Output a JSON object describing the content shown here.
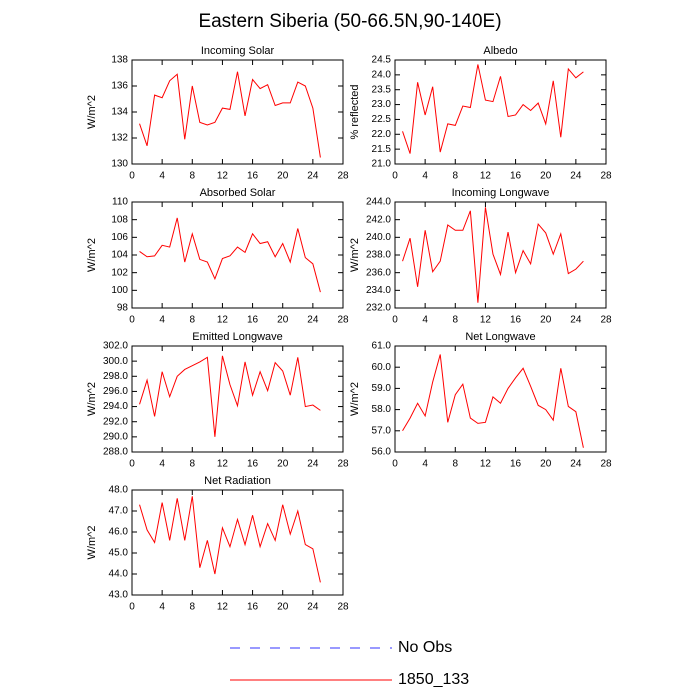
{
  "title": "Eastern Siberia (50-66.5N,90-140E)",
  "legend": [
    {
      "name": "No Obs",
      "color": "#3333ff",
      "dashed": true
    },
    {
      "name": "1850_133",
      "color": "#ff0000",
      "dashed": false
    }
  ],
  "chart_data": [
    {
      "type": "line",
      "title": "Incoming Solar",
      "y_label": "W/m^2",
      "color": "#ff0000",
      "x": [
        1,
        2,
        3,
        4,
        5,
        6,
        7,
        8,
        9,
        10,
        11,
        12,
        13,
        14,
        15,
        16,
        17,
        18,
        19,
        20,
        21,
        22,
        23,
        24,
        25
      ],
      "values": [
        133.1,
        131.4,
        135.3,
        135.1,
        136.4,
        136.9,
        131.9,
        136.0,
        133.2,
        133.0,
        133.2,
        134.3,
        134.2,
        137.1,
        133.7,
        136.5,
        135.8,
        136.1,
        134.5,
        134.7,
        134.7,
        136.3,
        136.0,
        134.3,
        130.5
      ],
      "xlim": [
        0,
        28
      ],
      "xticks": [
        0,
        4,
        8,
        12,
        16,
        20,
        24,
        28
      ],
      "ylim": [
        130,
        138
      ],
      "yticks": [
        130,
        132,
        134,
        136,
        138
      ]
    },
    {
      "type": "line",
      "title": "Albedo",
      "y_label": "% reflected",
      "color": "#ff0000",
      "x": [
        1,
        2,
        3,
        4,
        5,
        6,
        7,
        8,
        9,
        10,
        11,
        12,
        13,
        14,
        15,
        16,
        17,
        18,
        19,
        20,
        21,
        22,
        23,
        24,
        25
      ],
      "values": [
        22.1,
        21.35,
        23.75,
        22.65,
        23.6,
        21.4,
        22.35,
        22.3,
        22.95,
        22.9,
        24.35,
        23.15,
        23.1,
        23.95,
        22.6,
        22.65,
        23.0,
        22.8,
        23.05,
        22.35,
        23.8,
        21.9,
        24.2,
        23.9,
        24.1
      ],
      "xlim": [
        0,
        28
      ],
      "xticks": [
        0,
        4,
        8,
        12,
        16,
        20,
        24,
        28
      ],
      "ylim": [
        21,
        24.5
      ],
      "yticks": [
        {
          "value": 21,
          "label": "21.0"
        },
        21.5,
        {
          "value": 22,
          "label": "22.0"
        },
        22.5,
        {
          "value": 23,
          "label": "23.0"
        },
        23.5,
        {
          "value": 24,
          "label": "24.0"
        },
        24.5
      ]
    },
    {
      "type": "line",
      "title": "Absorbed Solar",
      "y_label": "W/m^2",
      "color": "#ff0000",
      "x": [
        1,
        2,
        3,
        4,
        5,
        6,
        7,
        8,
        9,
        10,
        11,
        12,
        13,
        14,
        15,
        16,
        17,
        18,
        19,
        20,
        21,
        22,
        23,
        24,
        25
      ],
      "values": [
        104.4,
        103.8,
        103.9,
        105.1,
        104.9,
        108.2,
        103.2,
        106.4,
        103.5,
        103.2,
        101.3,
        103.6,
        103.9,
        104.9,
        104.3,
        106.4,
        105.3,
        105.5,
        103.8,
        105.3,
        103.2,
        107.0,
        103.7,
        103.0,
        99.8
      ],
      "xlim": [
        0,
        28
      ],
      "xticks": [
        0,
        4,
        8,
        12,
        16,
        20,
        24,
        28
      ],
      "ylim": [
        98,
        110
      ],
      "yticks": [
        98,
        100,
        102,
        104,
        106,
        108,
        110
      ]
    },
    {
      "type": "line",
      "title": "Incoming Longwave",
      "y_label": "W/m^2",
      "color": "#ff0000",
      "x": [
        1,
        2,
        3,
        4,
        5,
        6,
        7,
        8,
        9,
        10,
        11,
        12,
        13,
        14,
        15,
        16,
        17,
        18,
        19,
        20,
        21,
        22,
        23,
        24,
        25
      ],
      "values": [
        237.3,
        239.9,
        234.4,
        240.8,
        236.1,
        237.3,
        241.4,
        240.8,
        240.8,
        243.0,
        232.6,
        243.4,
        238.1,
        235.8,
        240.6,
        236.0,
        238.5,
        237.0,
        241.5,
        240.5,
        238.1,
        240.4,
        235.9,
        236.4,
        237.3
      ],
      "xlim": [
        0,
        28
      ],
      "xticks": [
        0,
        4,
        8,
        12,
        16,
        20,
        24,
        28
      ],
      "ylim": [
        232,
        244
      ],
      "yticks": [
        {
          "value": 232,
          "label": "232.0"
        },
        {
          "value": 234,
          "label": "234.0"
        },
        {
          "value": 236,
          "label": "236.0"
        },
        {
          "value": 238,
          "label": "238.0"
        },
        {
          "value": 240,
          "label": "240.0"
        },
        {
          "value": 242,
          "label": "242.0"
        },
        {
          "value": 244,
          "label": "244.0"
        }
      ]
    },
    {
      "type": "line",
      "title": "Emitted Longwave",
      "y_label": "W/m^2",
      "color": "#ff0000",
      "x": [
        1,
        2,
        3,
        4,
        5,
        6,
        7,
        8,
        9,
        10,
        11,
        12,
        13,
        14,
        15,
        16,
        17,
        18,
        19,
        20,
        21,
        22,
        23,
        24,
        25
      ],
      "values": [
        294.3,
        297.5,
        292.7,
        298.6,
        295.3,
        298.0,
        298.9,
        299.4,
        299.9,
        300.5,
        290.0,
        300.7,
        296.9,
        294.1,
        299.9,
        295.5,
        298.6,
        296.1,
        299.8,
        298.7,
        295.5,
        300.5,
        294.0,
        294.2,
        293.5
      ],
      "xlim": [
        0,
        28
      ],
      "xticks": [
        0,
        4,
        8,
        12,
        16,
        20,
        24,
        28
      ],
      "ylim": [
        288,
        302
      ],
      "yticks": [
        {
          "value": 288,
          "label": "288.0"
        },
        {
          "value": 290,
          "label": "290.0"
        },
        {
          "value": 292,
          "label": "292.0"
        },
        {
          "value": 294,
          "label": "294.0"
        },
        {
          "value": 296,
          "label": "296.0"
        },
        {
          "value": 298,
          "label": "298.0"
        },
        {
          "value": 300,
          "label": "300.0"
        },
        {
          "value": 302,
          "label": "302.0"
        }
      ]
    },
    {
      "type": "line",
      "title": "Net Longwave",
      "y_label": "W/m^2",
      "color": "#ff0000",
      "x": [
        1,
        2,
        3,
        4,
        5,
        6,
        7,
        8,
        9,
        10,
        11,
        12,
        13,
        14,
        15,
        16,
        17,
        18,
        19,
        20,
        21,
        22,
        23,
        24,
        25
      ],
      "values": [
        57.0,
        57.6,
        58.3,
        57.7,
        59.3,
        60.6,
        57.4,
        58.7,
        59.2,
        57.6,
        57.35,
        57.4,
        58.6,
        58.3,
        59.0,
        59.5,
        59.95,
        59.1,
        58.2,
        58.0,
        57.5,
        59.95,
        58.15,
        57.9,
        56.2
      ],
      "xlim": [
        0,
        28
      ],
      "xticks": [
        0,
        4,
        8,
        12,
        16,
        20,
        24,
        28
      ],
      "ylim": [
        56,
        61
      ],
      "yticks": [
        {
          "value": 56,
          "label": "56.0"
        },
        {
          "value": 57,
          "label": "57.0"
        },
        {
          "value": 58,
          "label": "58.0"
        },
        {
          "value": 59,
          "label": "59.0"
        },
        {
          "value": 60,
          "label": "60.0"
        },
        {
          "value": 61,
          "label": "61.0"
        }
      ]
    },
    {
      "type": "line",
      "title": "Net Radiation",
      "y_label": "W/m^2",
      "color": "#ff0000",
      "x": [
        1,
        2,
        3,
        4,
        5,
        6,
        7,
        8,
        9,
        10,
        11,
        12,
        13,
        14,
        15,
        16,
        17,
        18,
        19,
        20,
        21,
        22,
        23,
        24,
        25
      ],
      "values": [
        47.3,
        46.1,
        45.5,
        47.4,
        45.6,
        47.6,
        45.6,
        47.7,
        44.3,
        45.6,
        44.0,
        46.2,
        45.3,
        46.6,
        45.4,
        46.8,
        45.3,
        46.4,
        45.6,
        47.3,
        45.9,
        47.0,
        45.4,
        45.2,
        43.6
      ],
      "xlim": [
        0,
        28
      ],
      "xticks": [
        0,
        4,
        8,
        12,
        16,
        20,
        24,
        28
      ],
      "ylim": [
        43,
        48
      ],
      "yticks": [
        {
          "value": 43,
          "label": "43.0"
        },
        {
          "value": 44,
          "label": "44.0"
        },
        {
          "value": 45,
          "label": "45.0"
        },
        {
          "value": 46,
          "label": "46.0"
        },
        {
          "value": 47,
          "label": "47.0"
        },
        {
          "value": 48,
          "label": "48.0"
        }
      ]
    }
  ]
}
